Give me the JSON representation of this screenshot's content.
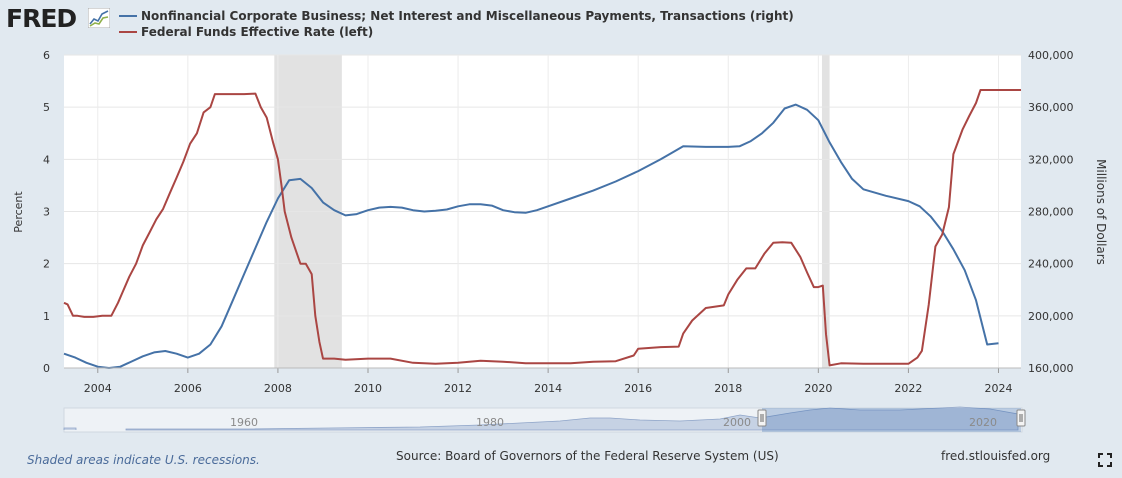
{
  "header": {
    "logo_text": "FRED",
    "legend": [
      {
        "label": "Nonfinancial Corporate Business; Net Interest and Miscellaneous Payments, Transactions (right)",
        "color": "#4572a7"
      },
      {
        "label": "Federal Funds Effective Rate (left)",
        "color": "#aa4643"
      }
    ]
  },
  "chart_data": {
    "type": "line",
    "title": "",
    "ylabel_left": "Percent",
    "ylabel_right": "Millions of Dollars",
    "xlim": [
      2003.25,
      2024.5
    ],
    "ylim_left": [
      0,
      6
    ],
    "ylim_right": [
      160000,
      400000
    ],
    "x_ticks": [
      "2004",
      "2006",
      "2008",
      "2010",
      "2012",
      "2014",
      "2016",
      "2018",
      "2020",
      "2022",
      "2024"
    ],
    "y_ticks_left": [
      "0",
      "1",
      "2",
      "3",
      "4",
      "5",
      "6"
    ],
    "y_ticks_right": [
      "160,000",
      "200,000",
      "240,000",
      "280,000",
      "320,000",
      "360,000",
      "400,000"
    ],
    "grid": true,
    "recessions": [
      [
        2007.92,
        2009.42
      ],
      [
        2020.08,
        2020.25
      ]
    ],
    "series": [
      {
        "name": "Nonfinancial Corporate Business; Net Interest and Miscellaneous Payments, Transactions (right)",
        "axis": "right",
        "color": "#4572a7",
        "x": [
          2003.25,
          2003.5,
          2003.75,
          2004.0,
          2004.25,
          2004.5,
          2004.75,
          2005.0,
          2005.25,
          2005.5,
          2005.75,
          2006.0,
          2006.25,
          2006.5,
          2006.75,
          2007.0,
          2007.25,
          2007.5,
          2007.75,
          2008.0,
          2008.25,
          2008.5,
          2008.75,
          2009.0,
          2009.25,
          2009.5,
          2009.75,
          2010.0,
          2010.25,
          2010.5,
          2010.75,
          2011.0,
          2011.25,
          2011.5,
          2011.75,
          2012.0,
          2012.25,
          2012.5,
          2012.75,
          2013.0,
          2013.25,
          2013.5,
          2013.75,
          2014.0,
          2014.5,
          2015.0,
          2015.5,
          2016.0,
          2016.5,
          2016.75,
          2017.0,
          2017.5,
          2018.0,
          2018.25,
          2018.5,
          2018.75,
          2019.0,
          2019.25,
          2019.5,
          2019.75,
          2020.0,
          2020.25,
          2020.5,
          2020.75,
          2021.0,
          2021.5,
          2022.0,
          2022.25,
          2022.5,
          2022.75,
          2023.0,
          2023.25,
          2023.5,
          2023.75,
          2024.0
        ],
        "values": [
          171000,
          168000,
          164000,
          161000,
          160000,
          161000,
          165000,
          169000,
          172000,
          173000,
          171000,
          168000,
          171000,
          178000,
          192000,
          212000,
          232000,
          252000,
          272000,
          290000,
          304000,
          305000,
          298000,
          287000,
          281000,
          277000,
          278000,
          281000,
          283000,
          283500,
          283000,
          281000,
          280000,
          280500,
          281500,
          284000,
          285500,
          285500,
          284500,
          281000,
          279500,
          279000,
          281000,
          284000,
          290000,
          296000,
          303000,
          311000,
          320000,
          325000,
          330000,
          329500,
          329500,
          330000,
          334000,
          340000,
          348000,
          359000,
          362000,
          358000,
          350000,
          333000,
          318000,
          305000,
          297000,
          292000,
          288000,
          284000,
          276000,
          265000,
          251000,
          235000,
          212000,
          178000,
          179000
        ]
      },
      {
        "name": "Federal Funds Effective Rate (left)",
        "axis": "left",
        "color": "#aa4643",
        "x": [
          2003.25,
          2003.33,
          2003.45,
          2003.55,
          2003.7,
          2003.9,
          2004.1,
          2004.3,
          2004.45,
          2004.55,
          2004.7,
          2004.85,
          2005.0,
          2005.15,
          2005.3,
          2005.45,
          2005.6,
          2005.75,
          2005.9,
          2006.05,
          2006.2,
          2006.35,
          2006.5,
          2006.6,
          2006.75,
          2007.0,
          2007.25,
          2007.5,
          2007.62,
          2007.75,
          2007.9,
          2008.0,
          2008.08,
          2008.15,
          2008.3,
          2008.5,
          2008.62,
          2008.75,
          2008.83,
          2008.92,
          2009.0,
          2009.25,
          2009.5,
          2010.0,
          2010.5,
          2011.0,
          2011.5,
          2012.0,
          2012.5,
          2013.0,
          2013.5,
          2014.0,
          2014.5,
          2015.0,
          2015.5,
          2015.9,
          2016.0,
          2016.5,
          2016.9,
          2017.0,
          2017.2,
          2017.5,
          2017.9,
          2018.0,
          2018.2,
          2018.4,
          2018.6,
          2018.8,
          2019.0,
          2019.2,
          2019.4,
          2019.6,
          2019.75,
          2019.9,
          2020.0,
          2020.1,
          2020.17,
          2020.25,
          2020.5,
          2021.0,
          2021.5,
          2022.0,
          2022.2,
          2022.3,
          2022.45,
          2022.6,
          2022.75,
          2022.9,
          2023.0,
          2023.2,
          2023.35,
          2023.5,
          2023.6,
          2024.0,
          2024.5
        ],
        "values": [
          1.25,
          1.22,
          1.0,
          1.0,
          0.98,
          0.98,
          1.0,
          1.0,
          1.25,
          1.45,
          1.75,
          2.0,
          2.35,
          2.6,
          2.85,
          3.05,
          3.35,
          3.65,
          3.95,
          4.3,
          4.5,
          4.9,
          5.0,
          5.25,
          5.25,
          5.25,
          5.25,
          5.26,
          5.0,
          4.8,
          4.3,
          4.0,
          3.5,
          3.0,
          2.5,
          2.0,
          2.0,
          1.8,
          1.0,
          0.5,
          0.18,
          0.18,
          0.16,
          0.18,
          0.18,
          0.1,
          0.08,
          0.1,
          0.14,
          0.12,
          0.09,
          0.09,
          0.09,
          0.12,
          0.13,
          0.24,
          0.37,
          0.4,
          0.41,
          0.66,
          0.91,
          1.15,
          1.2,
          1.41,
          1.69,
          1.91,
          1.91,
          2.19,
          2.4,
          2.41,
          2.4,
          2.13,
          1.83,
          1.55,
          1.55,
          1.58,
          0.65,
          0.05,
          0.09,
          0.08,
          0.08,
          0.08,
          0.2,
          0.33,
          1.21,
          2.33,
          2.56,
          3.08,
          4.1,
          4.57,
          4.83,
          5.08,
          5.33,
          5.33,
          5.33
        ]
      }
    ],
    "navigator": {
      "labels": [
        "1960",
        "1980",
        "2000",
        "2020"
      ]
    }
  },
  "footer": {
    "note": "Shaded areas indicate U.S. recessions.",
    "source": "Source: Board of Governors of the Federal Reserve System (US)",
    "site": "fred.stlouisfed.org"
  }
}
